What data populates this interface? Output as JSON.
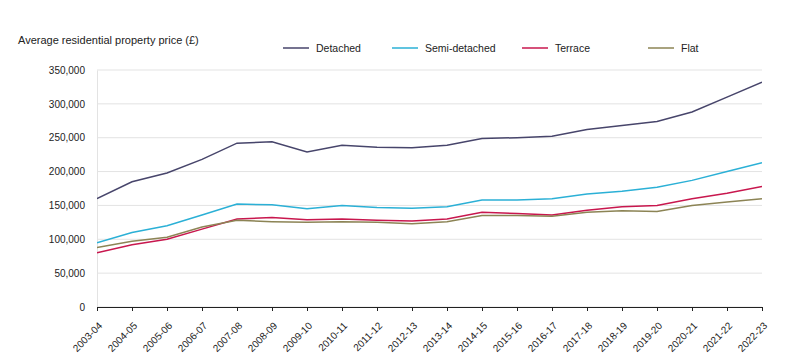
{
  "chart_data": {
    "type": "line",
    "title": "Average residential property price (£)",
    "categories": [
      "2003-04",
      "2004-05",
      "2005-06",
      "2006-07",
      "2007-08",
      "2008-09",
      "2009-10",
      "2010-11",
      "2011-12",
      "2012-13",
      "2013-14",
      "2014-15",
      "2015-16",
      "2016-17",
      "2017-18",
      "2018-19",
      "2019-20",
      "2020-21",
      "2021-22",
      "2022-23"
    ],
    "series": [
      {
        "name": "Detached",
        "color": "#47456b",
        "values": [
          160000,
          185000,
          198000,
          218000,
          242000,
          244000,
          229000,
          239000,
          236000,
          235000,
          239000,
          249000,
          250000,
          252000,
          262000,
          268000,
          274000,
          288000,
          310000,
          332000
        ]
      },
      {
        "name": "Semi-detached",
        "color": "#2bb0d6",
        "values": [
          95000,
          110000,
          120000,
          136000,
          152000,
          151000,
          145000,
          150000,
          147000,
          146000,
          148000,
          158000,
          158000,
          160000,
          167000,
          171000,
          177000,
          187000,
          200000,
          213000
        ]
      },
      {
        "name": "Terrace",
        "color": "#c8174e",
        "values": [
          80000,
          92000,
          100000,
          115000,
          130000,
          132000,
          129000,
          130000,
          128000,
          127000,
          130000,
          140000,
          138000,
          136000,
          143000,
          148000,
          150000,
          160000,
          168000,
          178000
        ]
      },
      {
        "name": "Flat",
        "color": "#8c8455",
        "values": [
          88000,
          97000,
          103000,
          118000,
          128000,
          126000,
          125000,
          126000,
          125000,
          123000,
          126000,
          135000,
          135000,
          134000,
          140000,
          142000,
          141000,
          150000,
          155000,
          160000
        ]
      }
    ],
    "ylim": [
      0,
      350000
    ],
    "yticks": [
      0,
      {
        "value": 50000,
        "label": "50,000"
      },
      {
        "value": 100000,
        "label": "100,000"
      },
      {
        "value": 150000,
        "label": "150,000"
      },
      {
        "value": 200000,
        "label": "200,000"
      },
      {
        "value": 250000,
        "label": "250,000"
      },
      {
        "value": 300000,
        "label": "300,000"
      },
      {
        "value": 350000,
        "label": "350,000"
      }
    ],
    "grid": true,
    "legend": "top"
  }
}
